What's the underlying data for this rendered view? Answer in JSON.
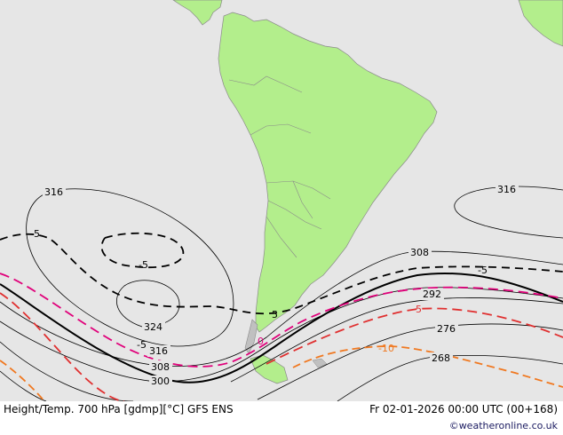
{
  "header": {
    "title": "Height/Temp. 700 hPa [gdmp][°C] GFS ENS",
    "valid_time": "Fr 02-01-2026 00:00 UTC (00+168)",
    "credit": "©weatheronline.co.uk"
  },
  "colors": {
    "ocean": "#e6e6e6",
    "land": "#b3ee8c",
    "coast": "#8a8a8a",
    "height_contour": "#000000",
    "temp_0": "#e0007a",
    "temp_minus5": "#e03030",
    "temp_minus10": "#f07820",
    "temp_plus5": "#000000"
  },
  "height_labels": [
    "316",
    "324",
    "316",
    "308",
    "300",
    "316",
    "308",
    "292",
    "276",
    "268"
  ],
  "temp_labels": [
    "-5",
    "-5",
    "-5",
    "-5",
    "0",
    "-5",
    "-10",
    "5"
  ]
}
